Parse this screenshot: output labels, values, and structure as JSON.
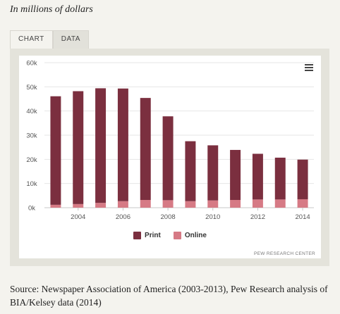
{
  "unit_note": "In millions of dollars",
  "tabs": [
    "CHART",
    "DATA"
  ],
  "credit": "PEW RESEARCH CENTER",
  "source": "Source: Newspaper Association of America (2003-2013), Pew Research analysis of BIA/Kelsey data (2014)",
  "menu_icon": "hamburger-menu-icon",
  "colors": {
    "print": "#7b2f3f",
    "online": "#d67a85"
  },
  "chart_data": {
    "type": "bar",
    "stacked": true,
    "x": [
      2003,
      2004,
      2005,
      2006,
      2007,
      2008,
      2009,
      2010,
      2011,
      2012,
      2013,
      2014
    ],
    "x_tick_labels": [
      "2004",
      "2006",
      "2008",
      "2010",
      "2012",
      "2014"
    ],
    "y_tick_labels": [
      "0k",
      "10k",
      "20k",
      "30k",
      "40k",
      "50k",
      "60k"
    ],
    "ylim": [
      0,
      60000
    ],
    "series": [
      {
        "name": "Print",
        "values": [
          44900,
          46700,
          47400,
          46600,
          42200,
          34700,
          24800,
          22800,
          20700,
          18900,
          17300,
          16400
        ]
      },
      {
        "name": "Online",
        "values": [
          1200,
          1500,
          2000,
          2700,
          3200,
          3100,
          2700,
          3000,
          3200,
          3400,
          3400,
          3500
        ]
      }
    ],
    "legend_position": "bottom-center",
    "grid": true
  }
}
